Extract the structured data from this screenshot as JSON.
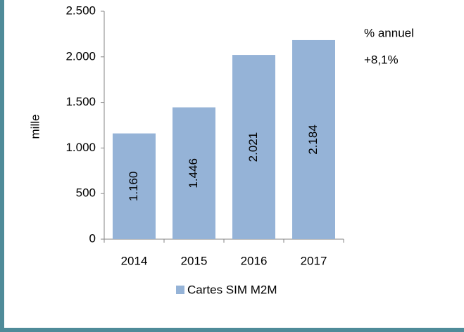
{
  "chart_data": {
    "type": "bar",
    "categories": [
      "2014",
      "2015",
      "2016",
      "2017"
    ],
    "series": [
      {
        "name": "Cartes SIM M2M",
        "color": "#95b3d7",
        "values": [
          1160,
          1446,
          2021,
          2184
        ],
        "value_labels": [
          "1.160",
          "1.446",
          "2.021",
          "2.184"
        ]
      }
    ],
    "y_label": "mille",
    "annotations": [
      "% annuel",
      "+8,1%"
    ],
    "ylim": [
      0,
      2500
    ],
    "yticks": [
      0,
      500,
      {
        "value": 1000,
        "label": "1.000"
      },
      {
        "value": 1500,
        "label": "1.500"
      },
      {
        "value": 2000,
        "label": "2.000"
      },
      {
        "value": 2500,
        "label": "2.500"
      }
    ],
    "legend": "bottom"
  }
}
